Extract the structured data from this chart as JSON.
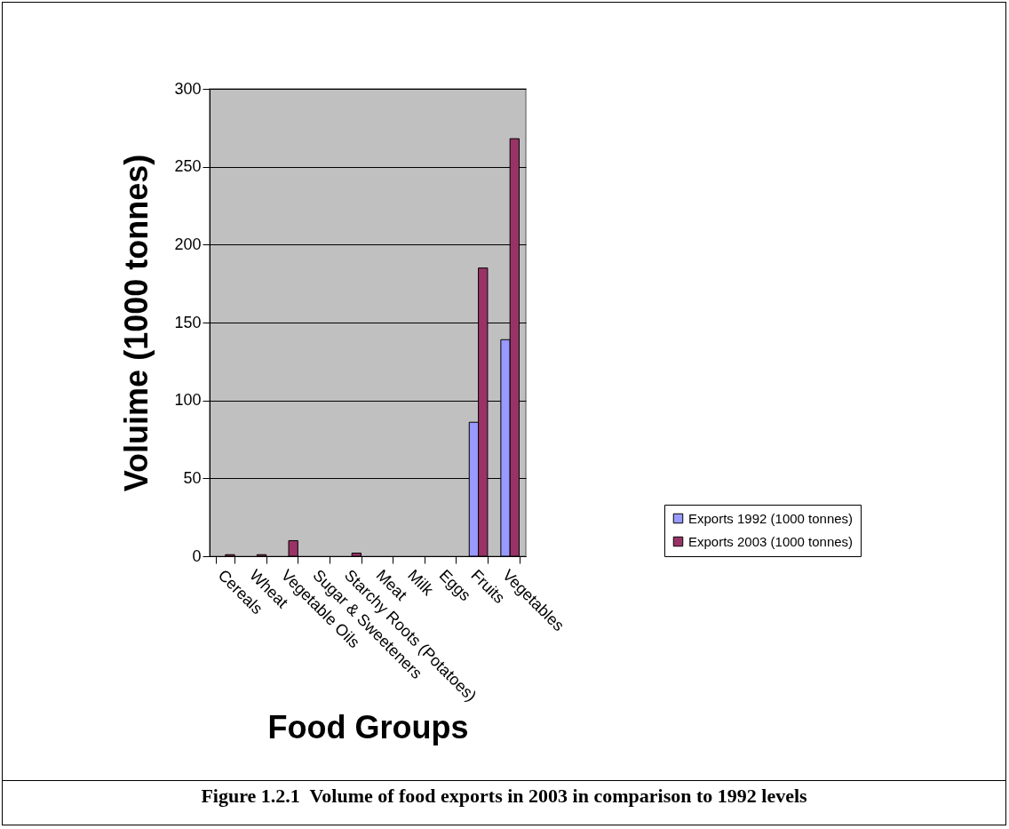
{
  "chart_data": {
    "type": "bar",
    "xlabel": "Food Groups",
    "ylabel": "Voluime (1000 tonnes)",
    "categories": [
      "Cereals",
      "Wheat",
      "Vegetable Oils",
      "Sugar & Sweeteners",
      "Starchy Roots (Potatoes)",
      "Meat",
      "Milk",
      "Eggs",
      "Fruits",
      "Vegetables"
    ],
    "series": [
      {
        "name": "Exports 1992 (1000 tonnes)",
        "color": "#9999ff",
        "values": [
          null,
          null,
          null,
          null,
          null,
          null,
          null,
          null,
          86,
          139
        ]
      },
      {
        "name": "Exports 2003 (1000 tonnes)",
        "color": "#993366",
        "values": [
          1,
          1,
          10,
          null,
          2,
          null,
          null,
          null,
          185,
          268
        ]
      }
    ],
    "ylim": [
      0,
      300
    ],
    "yticks": [
      0,
      50,
      100,
      150,
      200,
      250,
      300
    ],
    "grid": "y",
    "legend": "right",
    "annotations": [
      "Figure 1.2.1  Volume of food exports in 2003 in comparison to 1992 levels"
    ]
  }
}
